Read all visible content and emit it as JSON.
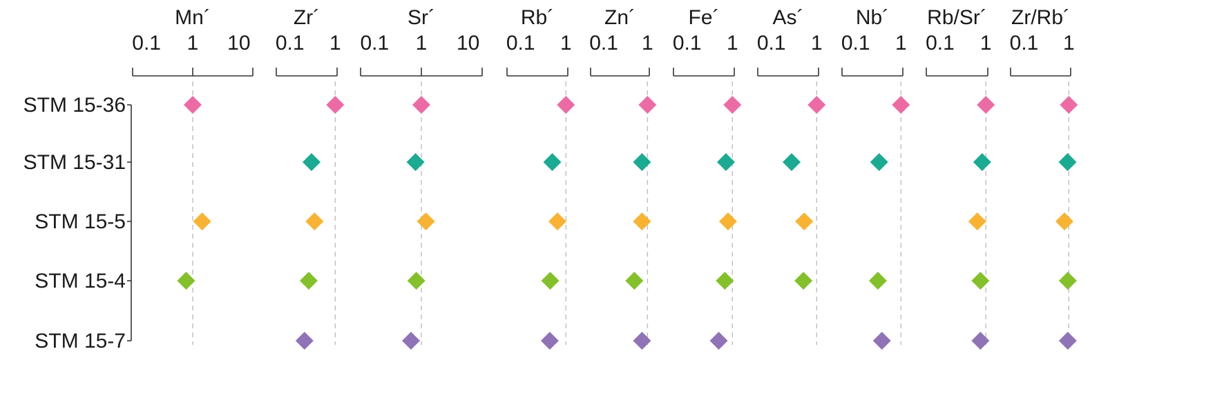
{
  "chart_data": {
    "type": "scatter",
    "scale": "log",
    "samples": [
      {
        "label": "STM 15-36",
        "color": "#ec6ba5"
      },
      {
        "label": "STM 15-31",
        "color": "#1aab92"
      },
      {
        "label": "STM 15-5",
        "color": "#f8b332"
      },
      {
        "label": "STM 15-4",
        "color": "#83c02a"
      },
      {
        "label": "STM 15-7",
        "color": "#8f73b6"
      }
    ],
    "panels": [
      {
        "title": "Mn´",
        "range": [
          0.05,
          20
        ],
        "ticks": [
          {
            "v": 0.1,
            "label": "0.1"
          },
          {
            "v": 1,
            "label": "1"
          },
          {
            "v": 10,
            "label": "10"
          }
        ],
        "values": [
          1.0,
          null,
          1.6,
          0.72,
          null
        ]
      },
      {
        "title": "Zr´",
        "range": [
          0.05,
          1.1
        ],
        "ticks": [
          {
            "v": 0.1,
            "label": "0.1"
          },
          {
            "v": 1,
            "label": "1"
          }
        ],
        "values": [
          1.0,
          0.3,
          0.35,
          0.26,
          0.21
        ]
      },
      {
        "title": "Sr´",
        "range": [
          0.05,
          20
        ],
        "ticks": [
          {
            "v": 0.1,
            "label": "0.1"
          },
          {
            "v": 1,
            "label": "1"
          },
          {
            "v": 10,
            "label": "10"
          }
        ],
        "values": [
          1.0,
          0.75,
          1.25,
          0.78,
          0.6
        ]
      },
      {
        "title": "Rb´",
        "range": [
          0.05,
          1.1
        ],
        "ticks": [
          {
            "v": 0.1,
            "label": "0.1"
          },
          {
            "v": 1,
            "label": "1"
          }
        ],
        "values": [
          1.0,
          0.5,
          0.65,
          0.45,
          0.44
        ]
      },
      {
        "title": "Zn´",
        "range": [
          0.05,
          1.1
        ],
        "ticks": [
          {
            "v": 0.1,
            "label": "0.1"
          },
          {
            "v": 1,
            "label": "1"
          }
        ],
        "values": [
          1.0,
          0.75,
          0.75,
          0.5,
          0.75
        ]
      },
      {
        "title": "Fe´",
        "range": [
          0.05,
          1.1
        ],
        "ticks": [
          {
            "v": 0.1,
            "label": "0.1"
          },
          {
            "v": 1,
            "label": "1"
          }
        ],
        "values": [
          1.0,
          0.72,
          0.8,
          0.68,
          0.5
        ]
      },
      {
        "title": "As´",
        "range": [
          0.05,
          1.1
        ],
        "ticks": [
          {
            "v": 0.1,
            "label": "0.1"
          },
          {
            "v": 1,
            "label": "1"
          }
        ],
        "values": [
          1.0,
          0.28,
          0.53,
          0.51,
          null
        ]
      },
      {
        "title": "Nb´",
        "range": [
          0.05,
          1.1
        ],
        "ticks": [
          {
            "v": 0.1,
            "label": "0.1"
          },
          {
            "v": 1,
            "label": "1"
          }
        ],
        "values": [
          1.0,
          0.33,
          null,
          0.31,
          0.38
        ]
      },
      {
        "title": "Rb/Sr´",
        "range": [
          0.05,
          1.1
        ],
        "ticks": [
          {
            "v": 0.1,
            "label": "0.1"
          },
          {
            "v": 1,
            "label": "1"
          }
        ],
        "values": [
          1.0,
          0.83,
          0.65,
          0.76,
          0.76
        ]
      },
      {
        "title": "Zr/Rb´",
        "range": [
          0.05,
          1.1
        ],
        "ticks": [
          {
            "v": 0.1,
            "label": "0.1"
          },
          {
            "v": 1,
            "label": "1"
          }
        ],
        "values": [
          1.0,
          0.94,
          0.8,
          0.95,
          0.95
        ]
      }
    ]
  }
}
